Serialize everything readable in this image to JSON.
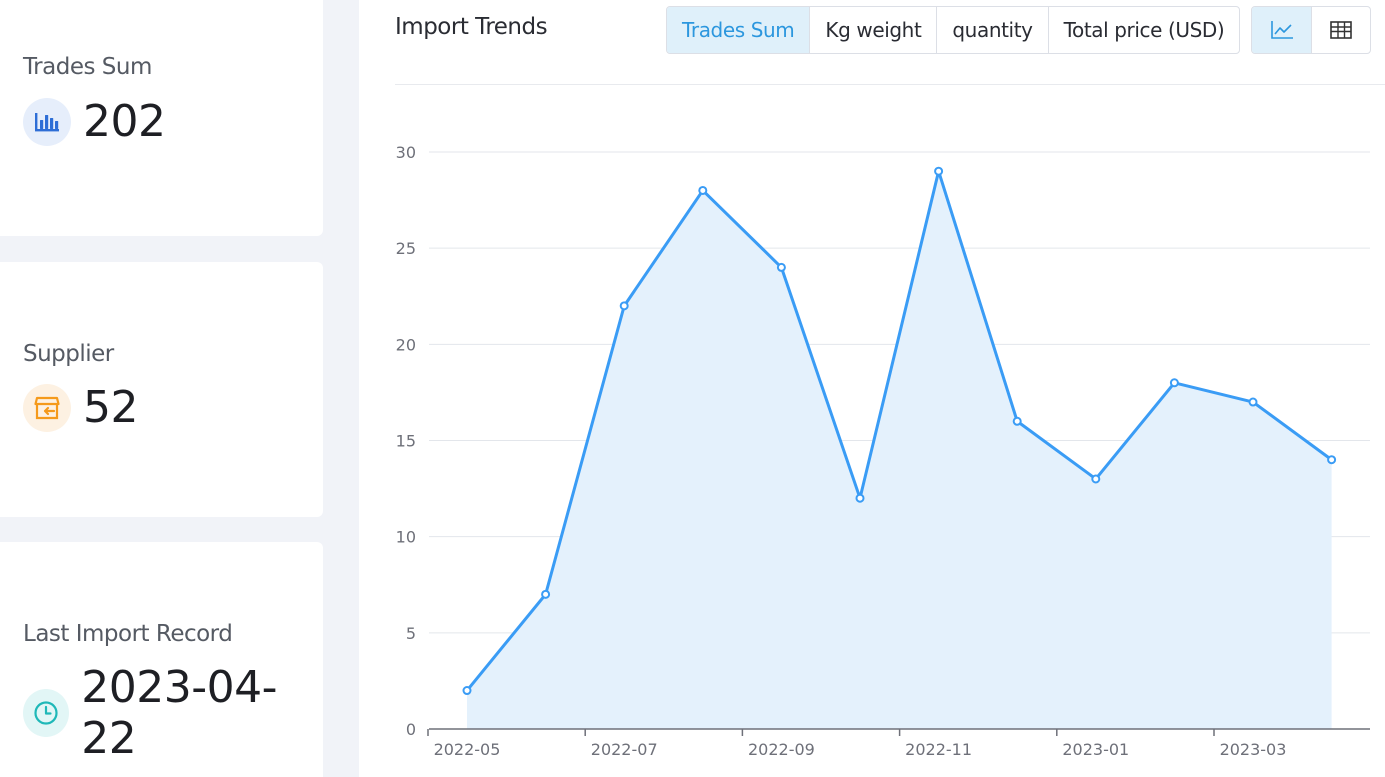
{
  "stats": {
    "trades_sum": {
      "label": "Trades Sum",
      "value": "202",
      "icon": "bar-chart-icon"
    },
    "supplier": {
      "label": "Supplier",
      "value": "52",
      "icon": "storefront-icon"
    },
    "last_import": {
      "label": "Last Import Record",
      "value": "2023-04-22",
      "icon": "clock-icon"
    }
  },
  "panel": {
    "title": "Import Trends",
    "metric_tabs": [
      {
        "label": "Trades Sum",
        "active": true
      },
      {
        "label": "Kg weight",
        "active": false
      },
      {
        "label": "quantity",
        "active": false
      },
      {
        "label": "Total price (USD)",
        "active": false
      }
    ],
    "view_tabs": [
      {
        "icon": "line-chart-icon",
        "active": true
      },
      {
        "icon": "table-icon",
        "active": false
      }
    ]
  },
  "colors": {
    "accent": "#2c97de",
    "line": "#3a9cf5",
    "area": "#e4f1fc",
    "icon_blue": "#2e6ed6",
    "icon_orange": "#f59a1b",
    "icon_teal": "#1fb8b8"
  },
  "chart_data": {
    "type": "area",
    "x": [
      "2022-05",
      "2022-06",
      "2022-07",
      "2022-08",
      "2022-09",
      "2022-10",
      "2022-11",
      "2022-12",
      "2023-01",
      "2023-02",
      "2023-03",
      "2023-04"
    ],
    "x_tick_labels": [
      "2022-05",
      "2022-07",
      "2022-09",
      "2022-11",
      "2023-01",
      "2023-03"
    ],
    "series": [
      {
        "values": [
          2,
          7,
          22,
          28,
          24,
          12,
          29,
          16,
          13,
          18,
          17,
          14
        ]
      }
    ],
    "y_ticks": [
      0,
      5,
      10,
      15,
      20,
      25,
      30
    ],
    "ylim": [
      0,
      30
    ],
    "grid": true
  }
}
